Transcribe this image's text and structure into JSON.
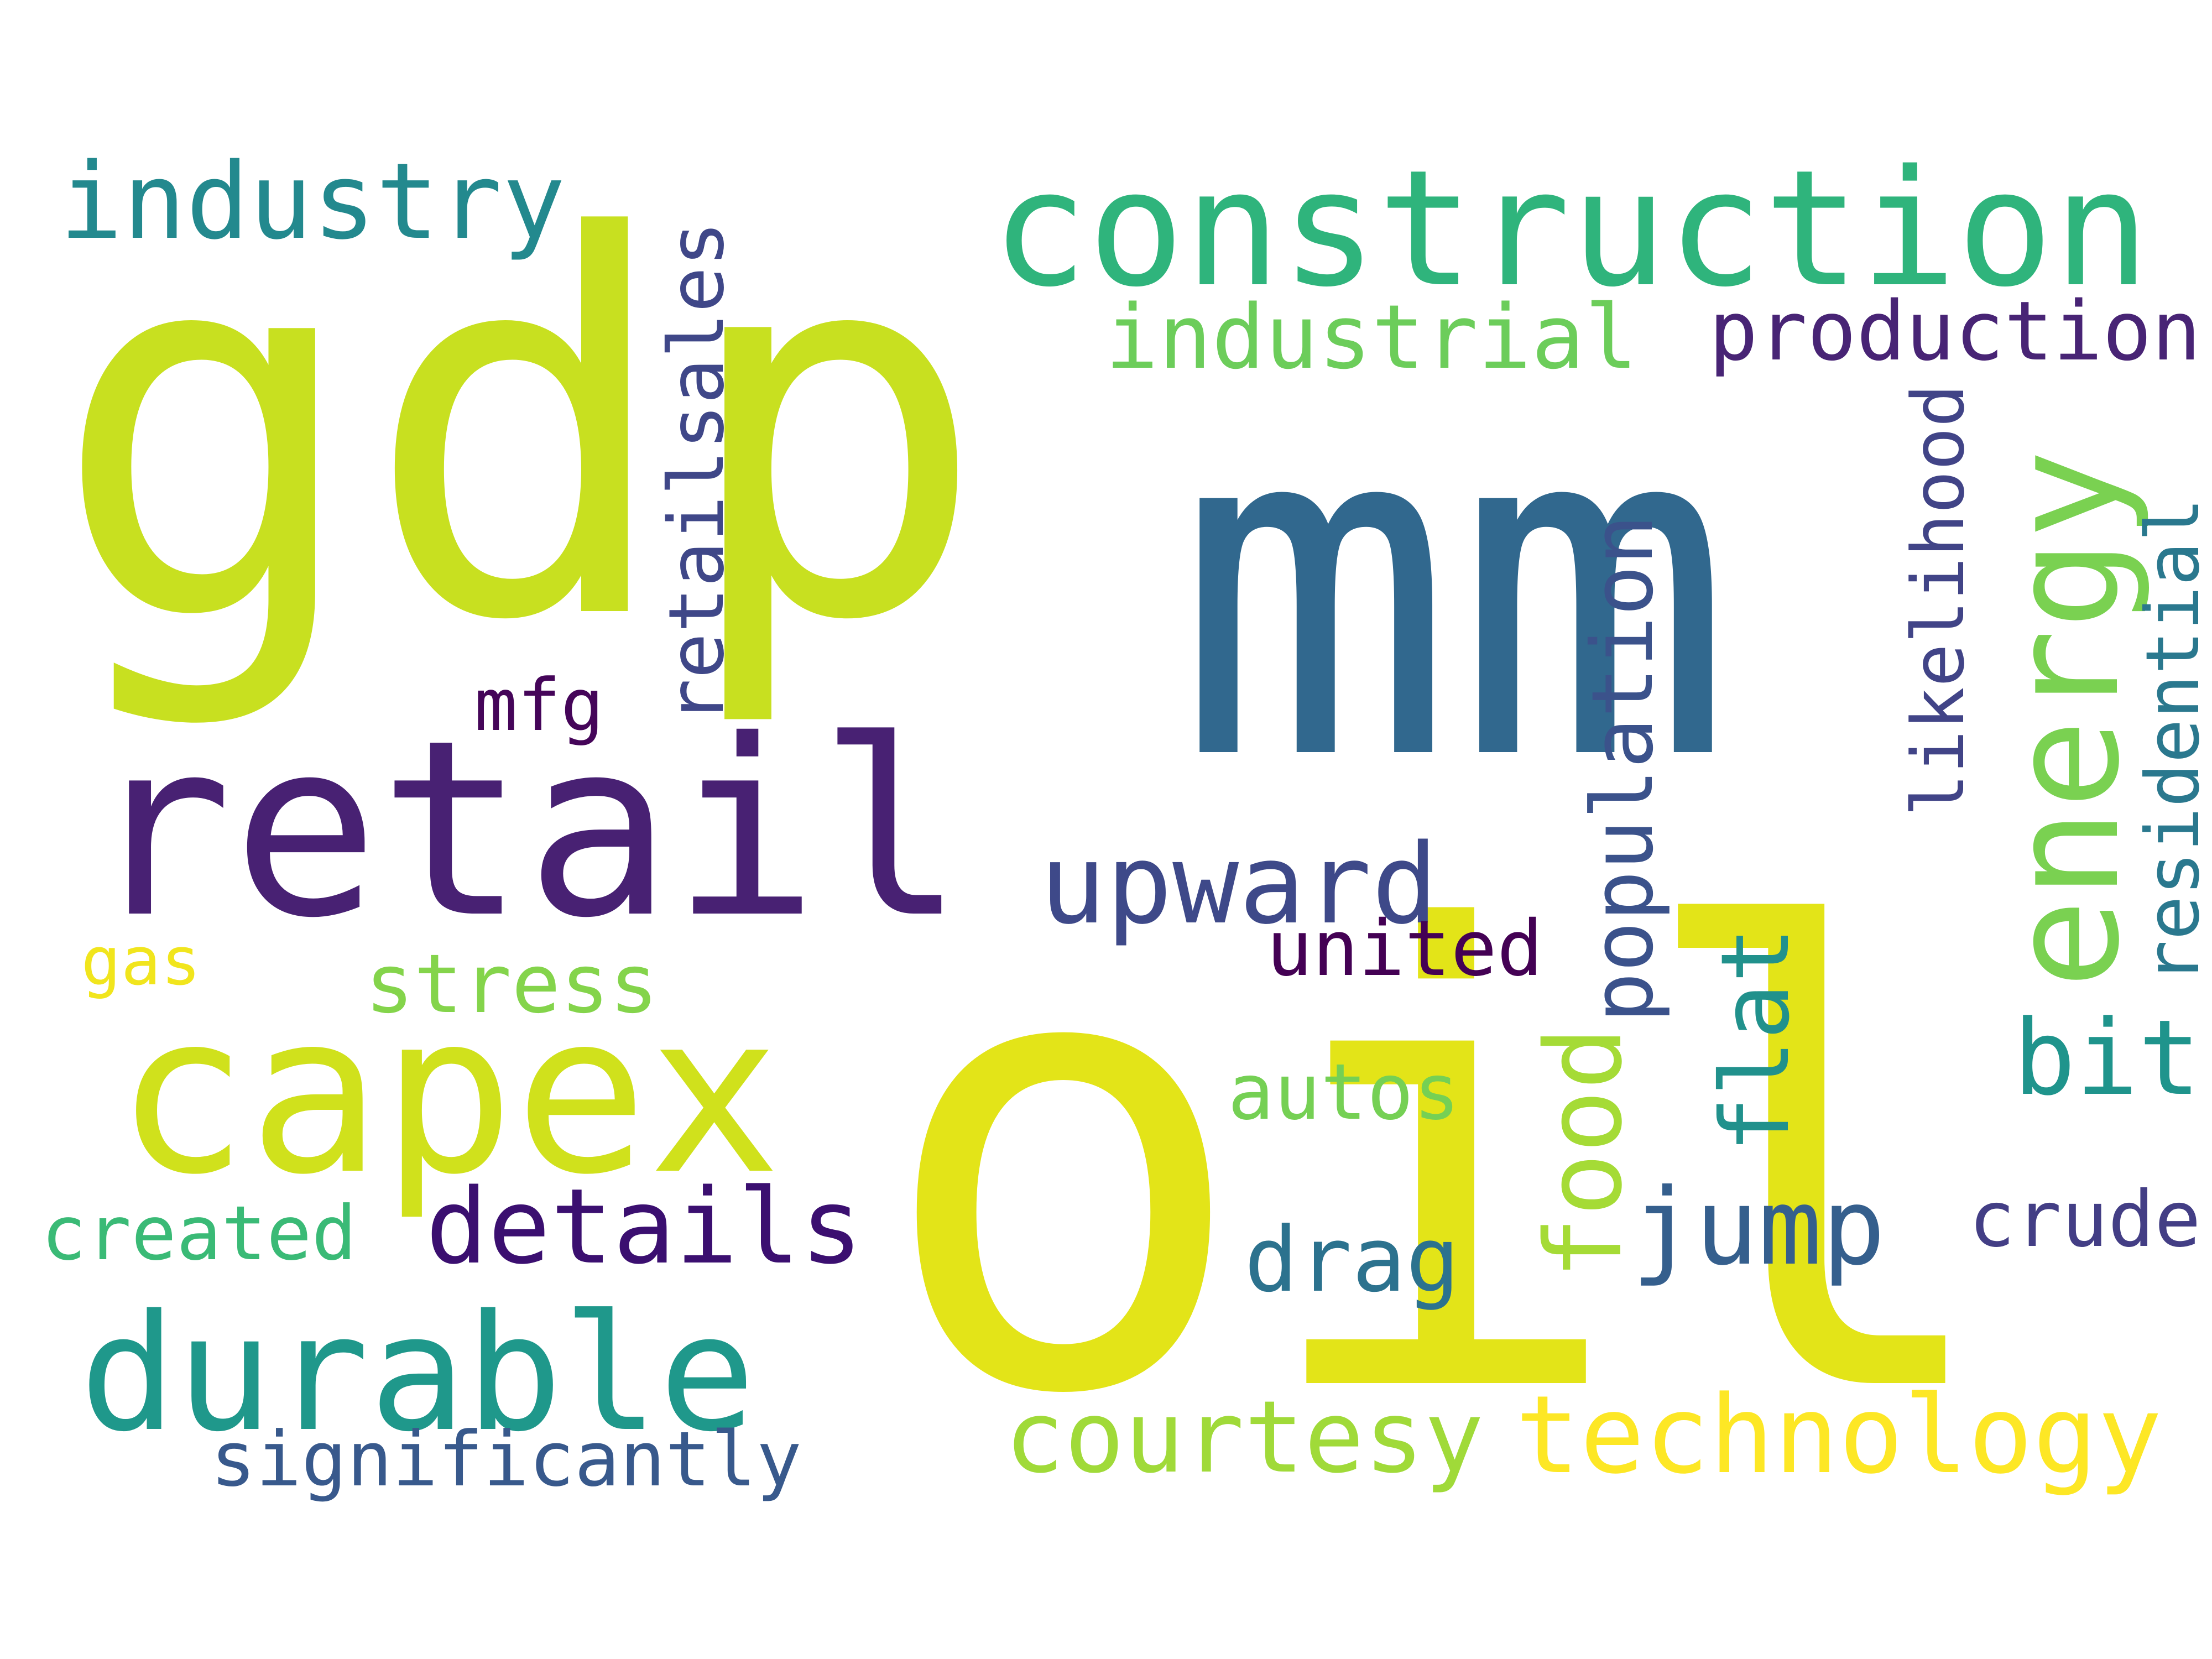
{
  "words": [
    {
      "text": "oil",
      "color": "#e3e418"
    },
    {
      "text": "mm",
      "color": "#31688e"
    },
    {
      "text": "gdp",
      "color": "#c8e020"
    },
    {
      "text": "retail",
      "color": "#482173"
    },
    {
      "text": "capex",
      "color": "#d0e11c"
    },
    {
      "text": "construction",
      "color": "#2fb47c"
    },
    {
      "text": "durable",
      "color": "#1f988b"
    },
    {
      "text": "energy",
      "color": "#7ad151"
    },
    {
      "text": "industry",
      "color": "#23898e"
    },
    {
      "text": "industrial",
      "color": "#6ccd5a"
    },
    {
      "text": "technology",
      "color": "#fde725"
    },
    {
      "text": "courtesy",
      "color": "#a0da39"
    },
    {
      "text": "upward",
      "color": "#3e4989"
    },
    {
      "text": "production",
      "color": "#482475"
    },
    {
      "text": "details",
      "color": "#3b0f70"
    },
    {
      "text": "jump",
      "color": "#355f8d"
    },
    {
      "text": "bit",
      "color": "#1f948c"
    },
    {
      "text": "food",
      "color": "#a5db36"
    },
    {
      "text": "population",
      "color": "#3b528b"
    },
    {
      "text": "retailsales",
      "color": "#3f4788"
    },
    {
      "text": "flat",
      "color": "#21918c"
    },
    {
      "text": "stress",
      "color": "#84d44b"
    },
    {
      "text": "significantly",
      "color": "#38598c"
    },
    {
      "text": "created",
      "color": "#3aba76"
    },
    {
      "text": "drag",
      "color": "#2c728e"
    },
    {
      "text": "autos",
      "color": "#75d054"
    },
    {
      "text": "united",
      "color": "#440154"
    },
    {
      "text": "crude",
      "color": "#433e85"
    },
    {
      "text": "likelihood",
      "color": "#414487"
    },
    {
      "text": "residential",
      "color": "#2a788e"
    },
    {
      "text": "mfg",
      "color": "#450559"
    },
    {
      "text": "gas",
      "color": "#f1e51d"
    }
  ]
}
